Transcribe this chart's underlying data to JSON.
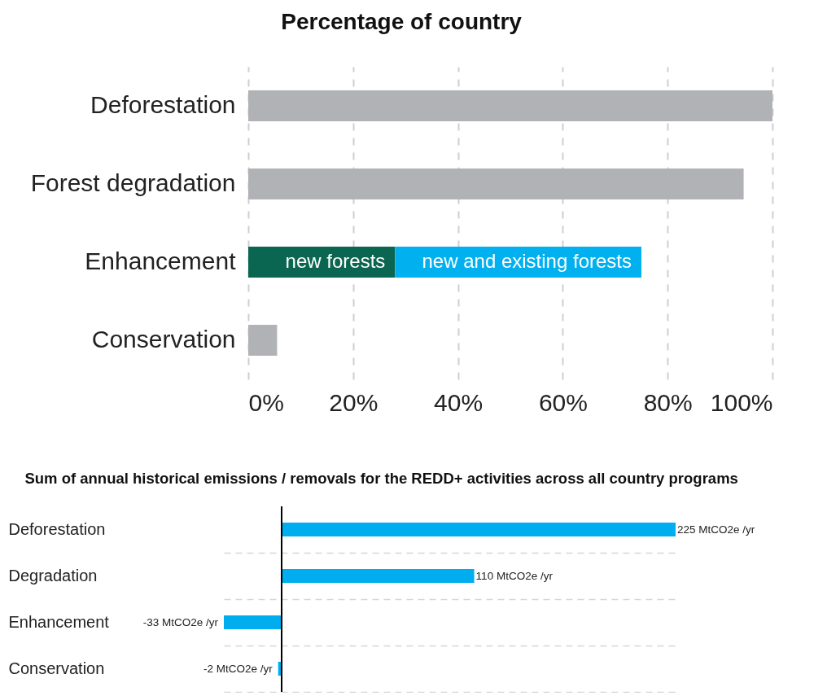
{
  "chart_data": [
    {
      "type": "bar",
      "orientation": "horizontal",
      "stacked": true,
      "title": "Percentage of country",
      "categories": [
        "Deforestation",
        "Forest degradation",
        "Enhancement",
        "Conservation"
      ],
      "series": [
        {
          "color": "#b1b2b5",
          "values": [
            100,
            94.5,
            null,
            5.5
          ]
        },
        {
          "name": "new forests",
          "color": "#0a6650",
          "values": [
            null,
            null,
            28,
            null
          ]
        },
        {
          "name": "new and existing forests",
          "color": "#00b0ef",
          "values": [
            null,
            null,
            47,
            null
          ]
        }
      ],
      "xlim": [
        0,
        100
      ],
      "xticks": [
        {
          "value": 0,
          "label": "0%"
        },
        {
          "value": 20,
          "label": "20%"
        },
        {
          "value": 40,
          "label": "40%"
        },
        {
          "value": 60,
          "label": "60%"
        },
        {
          "value": 80,
          "label": "80%"
        },
        {
          "value": 100,
          "label": "100%"
        }
      ],
      "grid": "x",
      "legend": false
    },
    {
      "type": "bar",
      "orientation": "horizontal",
      "title": "Sum of annual historical emissions / removals for the REDD+ activities across all country programs",
      "categories": [
        "Deforestation",
        "Degradation",
        "Enhancement",
        "Conservation"
      ],
      "values": [
        225,
        110,
        -33,
        -2
      ],
      "color": "#00aeef",
      "value_labels": [
        "225 MtCO2e /yr",
        "110 MtCO2e /yr",
        "-33 MtCO2e /yr",
        "-2 MtCO2e /yr"
      ],
      "grid": "y",
      "tick_labels": "y"
    }
  ]
}
